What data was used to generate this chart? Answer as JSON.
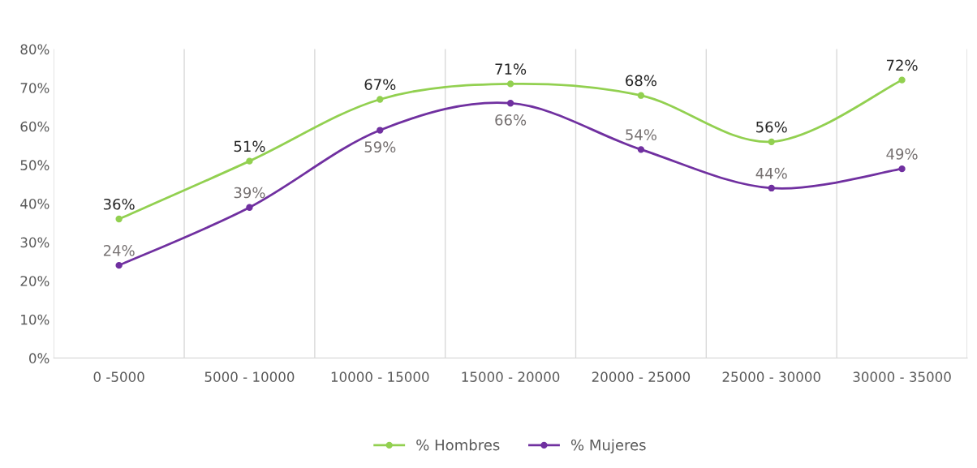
{
  "chart_data": {
    "type": "line",
    "categories": [
      "0 -5000",
      "5000 - 10000",
      "10000 - 15000",
      "15000 - 20000",
      "20000 - 25000",
      "25000 - 30000",
      "30000 - 35000"
    ],
    "series": [
      {
        "name": "% Hombres",
        "color": "#92d050",
        "values": [
          36,
          51,
          67,
          71,
          68,
          56,
          72
        ]
      },
      {
        "name": "% Mujeres",
        "color": "#7030a0",
        "values": [
          24,
          39,
          59,
          66,
          54,
          44,
          49
        ]
      }
    ],
    "ylim": [
      0,
      80
    ],
    "yticks": [
      {
        "value": 0,
        "label": "0%"
      },
      {
        "value": 10,
        "label": "10%"
      },
      {
        "value": 20,
        "label": "20%"
      },
      {
        "value": 30,
        "label": "30%"
      },
      {
        "value": 40,
        "label": "40%"
      },
      {
        "value": 50,
        "label": "50%"
      },
      {
        "value": 60,
        "label": "60%"
      },
      {
        "value": 70,
        "label": "70%"
      },
      {
        "value": 80,
        "label": "80%"
      }
    ],
    "value_labels": [
      [
        "36%",
        "51%",
        "67%",
        "71%",
        "68%",
        "56%",
        "72%"
      ],
      [
        "24%",
        "39%",
        "59%",
        "66%",
        "54%",
        "44%",
        "49%"
      ]
    ],
    "grid": "x",
    "legend": "bottom",
    "marker": "circle",
    "line_style": "solid"
  }
}
